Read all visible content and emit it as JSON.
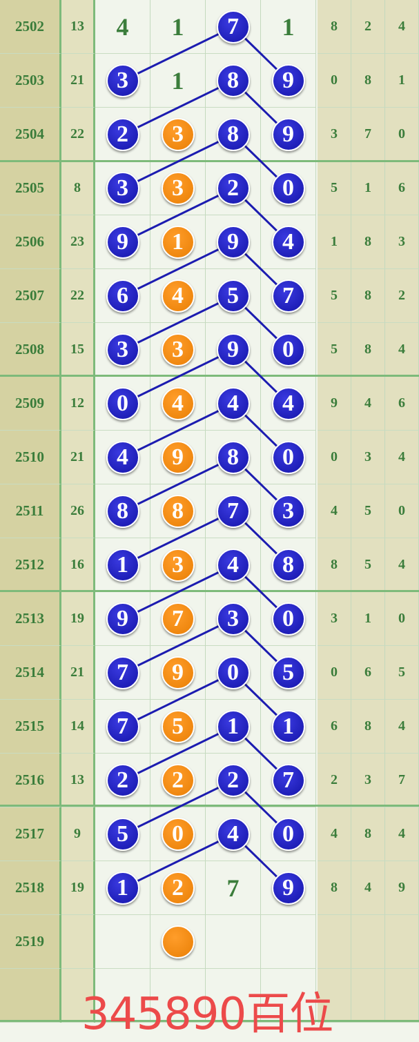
{
  "colors": {
    "blue": "#1c1cb0",
    "orange": "#ee8508",
    "text": "#3b7d3b",
    "footer": "#ec4a4a"
  },
  "rows": [
    {
      "period": "2502",
      "sum": "13",
      "digits": [
        [
          "4",
          "plain"
        ],
        [
          "1",
          "plain"
        ],
        [
          "7",
          "blue"
        ],
        [
          "1",
          "plain"
        ]
      ],
      "tail": [
        "8",
        "2",
        "4"
      ]
    },
    {
      "period": "2503",
      "sum": "21",
      "digits": [
        [
          "3",
          "blue"
        ],
        [
          "1",
          "plain"
        ],
        [
          "8",
          "blue"
        ],
        [
          "9",
          "blue"
        ]
      ],
      "tail": [
        "0",
        "8",
        "1"
      ]
    },
    {
      "period": "2504",
      "sum": "22",
      "digits": [
        [
          "2",
          "blue"
        ],
        [
          "3",
          "orange"
        ],
        [
          "8",
          "blue"
        ],
        [
          "9",
          "blue"
        ]
      ],
      "tail": [
        "3",
        "7",
        "0"
      ]
    },
    {
      "period": "2505",
      "sum": "8",
      "digits": [
        [
          "3",
          "blue"
        ],
        [
          "3",
          "orange"
        ],
        [
          "2",
          "blue"
        ],
        [
          "0",
          "blue"
        ]
      ],
      "tail": [
        "5",
        "1",
        "6"
      ]
    },
    {
      "period": "2506",
      "sum": "23",
      "digits": [
        [
          "9",
          "blue"
        ],
        [
          "1",
          "orange"
        ],
        [
          "9",
          "blue"
        ],
        [
          "4",
          "blue"
        ]
      ],
      "tail": [
        "1",
        "8",
        "3"
      ]
    },
    {
      "period": "2507",
      "sum": "22",
      "digits": [
        [
          "6",
          "blue"
        ],
        [
          "4",
          "orange"
        ],
        [
          "5",
          "blue"
        ],
        [
          "7",
          "blue"
        ]
      ],
      "tail": [
        "5",
        "8",
        "2"
      ]
    },
    {
      "period": "2508",
      "sum": "15",
      "digits": [
        [
          "3",
          "blue"
        ],
        [
          "3",
          "orange"
        ],
        [
          "9",
          "blue"
        ],
        [
          "0",
          "blue"
        ]
      ],
      "tail": [
        "5",
        "8",
        "4"
      ]
    },
    {
      "period": "2509",
      "sum": "12",
      "digits": [
        [
          "0",
          "blue"
        ],
        [
          "4",
          "orange"
        ],
        [
          "4",
          "blue"
        ],
        [
          "4",
          "blue"
        ]
      ],
      "tail": [
        "9",
        "4",
        "6"
      ]
    },
    {
      "period": "2510",
      "sum": "21",
      "digits": [
        [
          "4",
          "blue"
        ],
        [
          "9",
          "orange"
        ],
        [
          "8",
          "blue"
        ],
        [
          "0",
          "blue"
        ]
      ],
      "tail": [
        "0",
        "3",
        "4"
      ]
    },
    {
      "period": "2511",
      "sum": "26",
      "digits": [
        [
          "8",
          "blue"
        ],
        [
          "8",
          "orange"
        ],
        [
          "7",
          "blue"
        ],
        [
          "3",
          "blue"
        ]
      ],
      "tail": [
        "4",
        "5",
        "0"
      ]
    },
    {
      "period": "2512",
      "sum": "16",
      "digits": [
        [
          "1",
          "blue"
        ],
        [
          "3",
          "orange"
        ],
        [
          "4",
          "blue"
        ],
        [
          "8",
          "blue"
        ]
      ],
      "tail": [
        "8",
        "5",
        "4"
      ]
    },
    {
      "period": "2513",
      "sum": "19",
      "digits": [
        [
          "9",
          "blue"
        ],
        [
          "7",
          "orange"
        ],
        [
          "3",
          "blue"
        ],
        [
          "0",
          "blue"
        ]
      ],
      "tail": [
        "3",
        "1",
        "0"
      ]
    },
    {
      "period": "2514",
      "sum": "21",
      "digits": [
        [
          "7",
          "blue"
        ],
        [
          "9",
          "orange"
        ],
        [
          "0",
          "blue"
        ],
        [
          "5",
          "blue"
        ]
      ],
      "tail": [
        "0",
        "6",
        "5"
      ]
    },
    {
      "period": "2515",
      "sum": "14",
      "digits": [
        [
          "7",
          "blue"
        ],
        [
          "5",
          "orange"
        ],
        [
          "1",
          "blue"
        ],
        [
          "1",
          "blue"
        ]
      ],
      "tail": [
        "6",
        "8",
        "4"
      ]
    },
    {
      "period": "2516",
      "sum": "13",
      "digits": [
        [
          "2",
          "blue"
        ],
        [
          "2",
          "orange"
        ],
        [
          "2",
          "blue"
        ],
        [
          "7",
          "blue"
        ]
      ],
      "tail": [
        "2",
        "3",
        "7"
      ]
    },
    {
      "period": "2517",
      "sum": "9",
      "digits": [
        [
          "5",
          "blue"
        ],
        [
          "0",
          "orange"
        ],
        [
          "4",
          "blue"
        ],
        [
          "0",
          "blue"
        ]
      ],
      "tail": [
        "4",
        "8",
        "4"
      ]
    },
    {
      "period": "2518",
      "sum": "19",
      "digits": [
        [
          "1",
          "blue"
        ],
        [
          "2",
          "orange"
        ],
        [
          "7",
          "plain"
        ],
        [
          "9",
          "blue"
        ]
      ],
      "tail": [
        "8",
        "4",
        "9"
      ]
    },
    {
      "period": "2519",
      "sum": "",
      "digits": [
        [
          "",
          ""
        ],
        [
          "",
          "orange"
        ],
        [
          "",
          ""
        ],
        [
          "",
          ""
        ]
      ],
      "tail": [
        "",
        "",
        ""
      ]
    },
    {
      "period": "",
      "sum": "",
      "digits": [
        [
          "",
          ""
        ],
        [
          "",
          ""
        ],
        [
          "",
          ""
        ],
        [
          "",
          ""
        ]
      ],
      "tail": [
        "",
        "",
        ""
      ]
    }
  ],
  "footer": "345890百位"
}
